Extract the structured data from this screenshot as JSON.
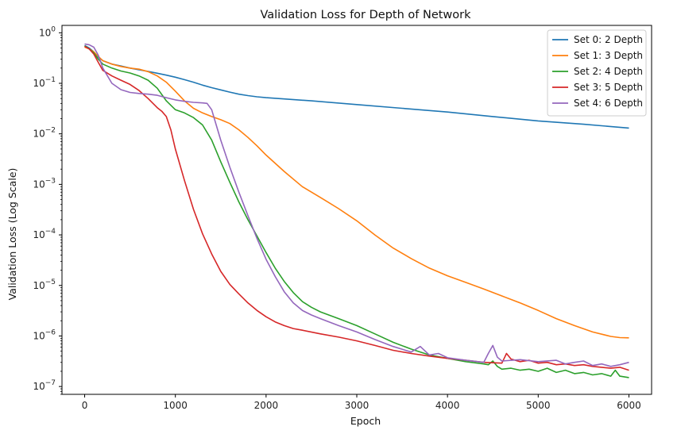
{
  "chart_data": {
    "type": "line",
    "title": "Validation Loss for Depth of Network",
    "xlabel": "Epoch",
    "ylabel": "Validation Loss (Log Scale)",
    "yscale": "log",
    "xlim": [
      -250,
      6250
    ],
    "ylim": [
      7e-08,
      1.4
    ],
    "x_ticks": [
      {
        "value": 0,
        "label": "0"
      },
      {
        "value": 1000,
        "label": "1000"
      },
      {
        "value": 2000,
        "label": "2000"
      },
      {
        "value": 3000,
        "label": "3000"
      },
      {
        "value": 4000,
        "label": "4000"
      },
      {
        "value": 5000,
        "label": "5000"
      },
      {
        "value": 6000,
        "label": "6000"
      }
    ],
    "y_ticks": [
      {
        "exp": 0,
        "value": 1
      },
      {
        "exp": -1,
        "value": 0.1
      },
      {
        "exp": -2,
        "value": 0.01
      },
      {
        "exp": -3,
        "value": 0.001
      },
      {
        "exp": -4,
        "value": 0.0001
      },
      {
        "exp": -5,
        "value": 1e-05
      },
      {
        "exp": -6,
        "value": 1e-06
      },
      {
        "exp": -7,
        "value": 1e-07
      }
    ],
    "grid": false,
    "legend_position": "top-right",
    "series": [
      {
        "name": "Set 0: 2 Depth",
        "color": "#1f77b4",
        "x": [
          0,
          50,
          100,
          150,
          200,
          300,
          400,
          500,
          600,
          700,
          800,
          900,
          1000,
          1100,
          1200,
          1300,
          1400,
          1500,
          1600,
          1700,
          1800,
          1900,
          2000,
          2200,
          2500,
          3000,
          3500,
          4000,
          4500,
          5000,
          5500,
          6000
        ],
        "y": [
          0.56,
          0.5,
          0.42,
          0.33,
          0.28,
          0.24,
          0.22,
          0.2,
          0.185,
          0.172,
          0.158,
          0.145,
          0.132,
          0.118,
          0.105,
          0.092,
          0.082,
          0.074,
          0.067,
          0.061,
          0.057,
          0.054,
          0.052,
          0.049,
          0.045,
          0.038,
          0.032,
          0.027,
          0.022,
          0.018,
          0.0155,
          0.013
        ]
      },
      {
        "name": "Set 1: 3 Depth",
        "color": "#ff7f0e",
        "x": [
          0,
          50,
          100,
          150,
          200,
          300,
          400,
          500,
          600,
          700,
          800,
          900,
          1000,
          1100,
          1200,
          1300,
          1400,
          1500,
          1600,
          1700,
          1800,
          1900,
          2000,
          2200,
          2400,
          2600,
          2800,
          3000,
          3200,
          3400,
          3600,
          3800,
          4000,
          4200,
          4400,
          4600,
          4800,
          5000,
          5200,
          5400,
          5600,
          5800,
          5900,
          6000
        ],
        "y": [
          0.52,
          0.48,
          0.42,
          0.34,
          0.28,
          0.24,
          0.215,
          0.2,
          0.19,
          0.17,
          0.14,
          0.105,
          0.07,
          0.045,
          0.032,
          0.026,
          0.022,
          0.019,
          0.016,
          0.012,
          0.0085,
          0.0058,
          0.0038,
          0.0018,
          0.0009,
          0.00055,
          0.00033,
          0.00019,
          0.0001,
          5.5e-05,
          3.4e-05,
          2.2e-05,
          1.55e-05,
          1.15e-05,
          8.5e-06,
          6.2e-06,
          4.5e-06,
          3.2e-06,
          2.2e-06,
          1.6e-06,
          1.2e-06,
          9.8e-07,
          9.3e-07,
          9.2e-07
        ]
      },
      {
        "name": "Set 2: 4 Depth",
        "color": "#2ca02c",
        "x": [
          0,
          50,
          100,
          150,
          200,
          300,
          400,
          500,
          600,
          700,
          800,
          900,
          1000,
          1100,
          1200,
          1300,
          1400,
          1500,
          1600,
          1700,
          1800,
          1900,
          2000,
          2100,
          2200,
          2300,
          2400,
          2500,
          2600,
          2800,
          3000,
          3200,
          3400,
          3600,
          3800,
          4000,
          4200,
          4400,
          4450,
          4500,
          4550,
          4600,
          4700,
          4800,
          4900,
          5000,
          5100,
          5200,
          5300,
          5400,
          5500,
          5600,
          5700,
          5800,
          5850,
          5900,
          6000
        ],
        "y": [
          0.55,
          0.48,
          0.4,
          0.3,
          0.24,
          0.2,
          0.175,
          0.16,
          0.14,
          0.115,
          0.08,
          0.045,
          0.03,
          0.026,
          0.021,
          0.015,
          0.0075,
          0.0028,
          0.0011,
          0.00045,
          0.0002,
          9.5e-05,
          4.5e-05,
          2.2e-05,
          1.2e-05,
          7.2e-06,
          4.8e-06,
          3.7e-06,
          3e-06,
          2.2e-06,
          1.6e-06,
          1.1e-06,
          7.5e-07,
          5.5e-07,
          4.2e-07,
          3.6e-07,
          3.1e-07,
          2.8e-07,
          2.7e-07,
          3.2e-07,
          2.5e-07,
          2.2e-07,
          2.3e-07,
          2.1e-07,
          2.2e-07,
          2e-07,
          2.3e-07,
          1.9e-07,
          2.1e-07,
          1.8e-07,
          1.9e-07,
          1.7e-07,
          1.8e-07,
          1.6e-07,
          2.1e-07,
          1.6e-07,
          1.5e-07
        ]
      },
      {
        "name": "Set 3: 5 Depth",
        "color": "#d62728",
        "x": [
          0,
          50,
          100,
          150,
          200,
          300,
          400,
          500,
          600,
          700,
          800,
          850,
          900,
          950,
          1000,
          1100,
          1200,
          1300,
          1400,
          1500,
          1600,
          1700,
          1800,
          1900,
          2000,
          2100,
          2200,
          2300,
          2400,
          2600,
          2800,
          3000,
          3200,
          3400,
          3600,
          3800,
          4000,
          4200,
          4400,
          4600,
          4650,
          4700,
          4800,
          4900,
          5000,
          5100,
          5200,
          5300,
          5400,
          5500,
          5600,
          5700,
          5800,
          5900,
          6000
        ],
        "y": [
          0.54,
          0.48,
          0.38,
          0.26,
          0.18,
          0.14,
          0.115,
          0.095,
          0.072,
          0.05,
          0.033,
          0.028,
          0.022,
          0.012,
          0.005,
          0.0012,
          0.00032,
          0.000105,
          4.2e-05,
          1.9e-05,
          1.05e-05,
          6.8e-06,
          4.5e-06,
          3.2e-06,
          2.4e-06,
          1.9e-06,
          1.6e-06,
          1.4e-06,
          1.3e-06,
          1.1e-06,
          9.5e-07,
          8e-07,
          6.5e-07,
          5.2e-07,
          4.5e-07,
          4e-07,
          3.6e-07,
          3.3e-07,
          3e-07,
          2.9e-07,
          4.5e-07,
          3.5e-07,
          3.1e-07,
          3.3e-07,
          2.9e-07,
          3e-07,
          2.7e-07,
          2.8e-07,
          2.6e-07,
          2.7e-07,
          2.5e-07,
          2.4e-07,
          2.3e-07,
          2.4e-07,
          2.1e-07
        ]
      },
      {
        "name": "Set 4: 6 Depth",
        "color": "#9467bd",
        "x": [
          0,
          50,
          100,
          150,
          200,
          300,
          400,
          500,
          600,
          700,
          800,
          900,
          1000,
          1100,
          1200,
          1300,
          1350,
          1400,
          1450,
          1500,
          1600,
          1700,
          1800,
          1900,
          2000,
          2100,
          2200,
          2300,
          2400,
          2500,
          2600,
          2800,
          3000,
          3200,
          3400,
          3600,
          3700,
          3800,
          3900,
          4000,
          4200,
          4400,
          4450,
          4500,
          4550,
          4600,
          4800,
          5000,
          5200,
          5300,
          5400,
          5500,
          5600,
          5700,
          5800,
          5900,
          6000
        ],
        "y": [
          0.6,
          0.58,
          0.52,
          0.36,
          0.2,
          0.1,
          0.075,
          0.066,
          0.063,
          0.061,
          0.058,
          0.052,
          0.047,
          0.044,
          0.042,
          0.041,
          0.04,
          0.03,
          0.015,
          0.0075,
          0.0022,
          0.0007,
          0.00024,
          8.5e-05,
          3.3e-05,
          1.5e-05,
          7.5e-06,
          4.5e-06,
          3.2e-06,
          2.6e-06,
          2.2e-06,
          1.6e-06,
          1.2e-06,
          8.5e-07,
          6.2e-07,
          4.8e-07,
          6.2e-07,
          4.2e-07,
          4.5e-07,
          3.7e-07,
          3.3e-07,
          3e-07,
          4.5e-07,
          6.5e-07,
          3.8e-07,
          3.2e-07,
          3.4e-07,
          3.1e-07,
          3.3e-07,
          2.8e-07,
          3e-07,
          3.2e-07,
          2.6e-07,
          2.8e-07,
          2.5e-07,
          2.7e-07,
          3e-07
        ]
      }
    ]
  }
}
